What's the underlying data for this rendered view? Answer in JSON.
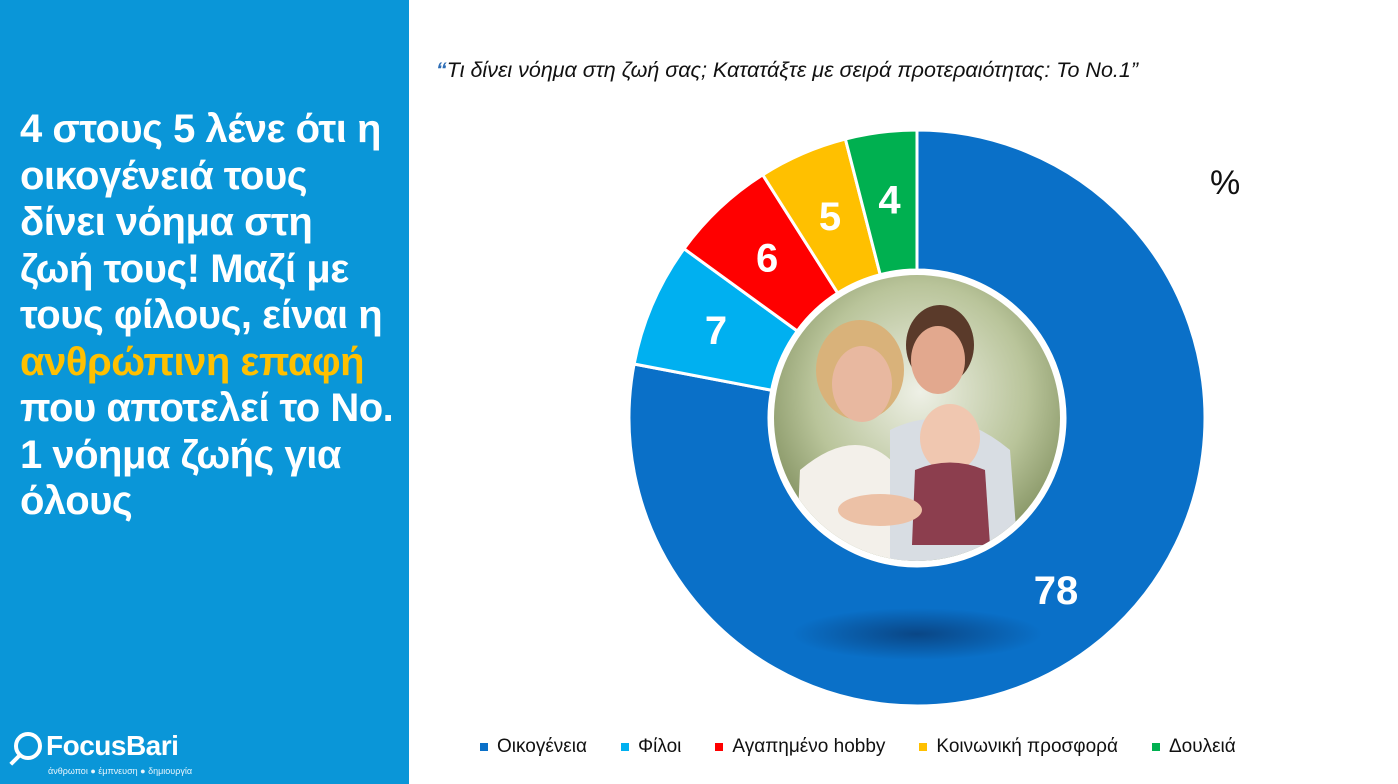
{
  "sidebar": {
    "headline_part1": "4 στους 5 λένε ότι η οικογένειά τους δίνει νόημα στη ζωή τους! Μαζί με τους φίλους, είναι η ",
    "headline_highlight": "ανθρώπινη επαφή",
    "headline_part2": " που αποτελεί το No. 1 νόημα ζωής για όλους",
    "highlight_color": "#ffc000",
    "background_color": "#0a96d8",
    "logo": {
      "name": "FocusBari",
      "tagline": "άνθρωποι ● έμπνευση ● δημιουργία"
    }
  },
  "chart_data": {
    "type": "pie",
    "donut": true,
    "title": "Τι δίνει νόημα στη ζωή σας; Κατατάξτε με σειρά προτεραιότητας: Το No.1”",
    "title_prefix": "“",
    "unit": "%",
    "legend_position": "bottom",
    "categories": [
      "Οικογένεια",
      "Φίλοι",
      "Αγαπημένο hobby",
      "Κοινωνική προσφορά",
      "Δουλειά"
    ],
    "values": [
      78,
      7,
      6,
      5,
      4
    ],
    "colors": [
      "#0a70c8",
      "#00b0f0",
      "#ff0000",
      "#ffc000",
      "#00b050"
    ],
    "center_image": "family-photo"
  }
}
